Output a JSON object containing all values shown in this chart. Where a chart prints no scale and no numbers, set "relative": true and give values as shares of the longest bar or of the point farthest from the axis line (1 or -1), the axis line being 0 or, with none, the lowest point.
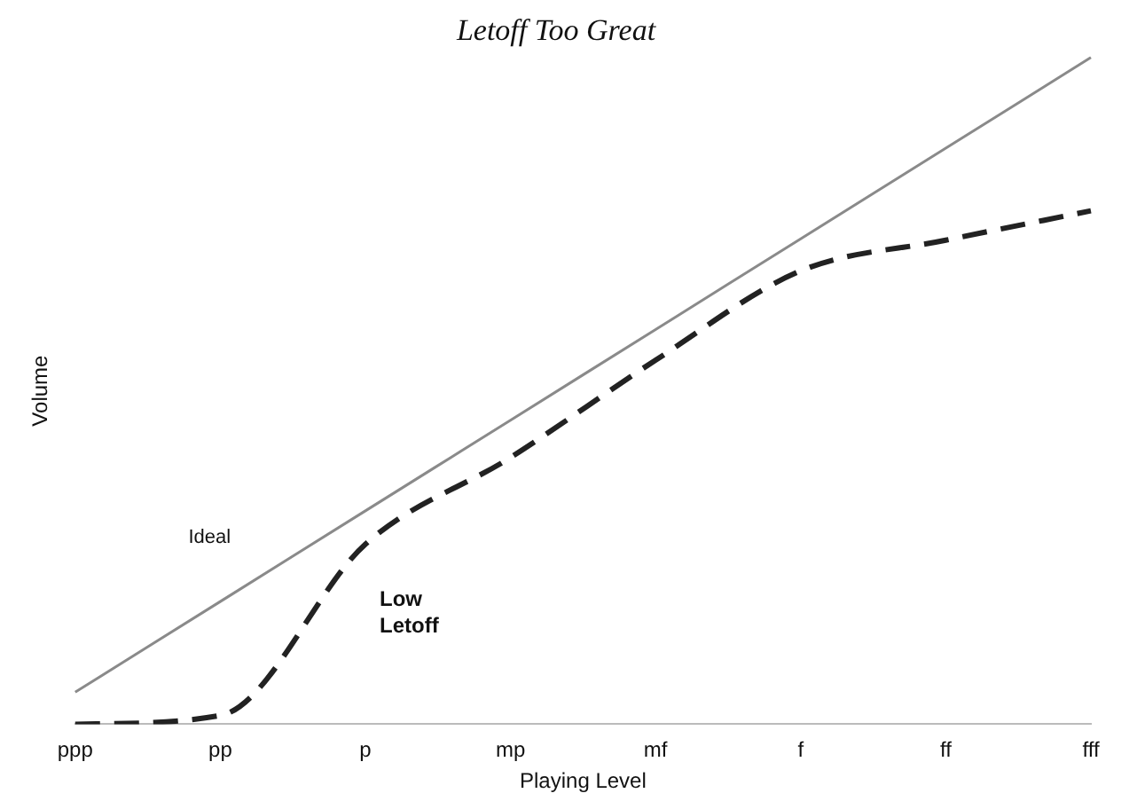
{
  "chart_data": {
    "type": "line",
    "title": "Letoff Too Great",
    "xlabel": "Playing Level",
    "ylabel": "Volume",
    "relative": true,
    "legend": false,
    "grid": false,
    "marker": "none",
    "categories": [
      "ppp",
      "pp",
      "p",
      "mp",
      "mf",
      "f",
      "ff",
      "fff"
    ],
    "series": [
      {
        "name": "Ideal",
        "color": "#8a8a8a",
        "line_style": "solid",
        "values": [
          0.048,
          0.184,
          0.32,
          0.456,
          0.592,
          0.728,
          0.864,
          1.0
        ]
      },
      {
        "name": "Low Letoff",
        "color": "#222222",
        "line_style": "dashed",
        "values": [
          0,
          0.013,
          0.27,
          0.4,
          0.546,
          0.68,
          0.726,
          0.77
        ]
      }
    ]
  }
}
